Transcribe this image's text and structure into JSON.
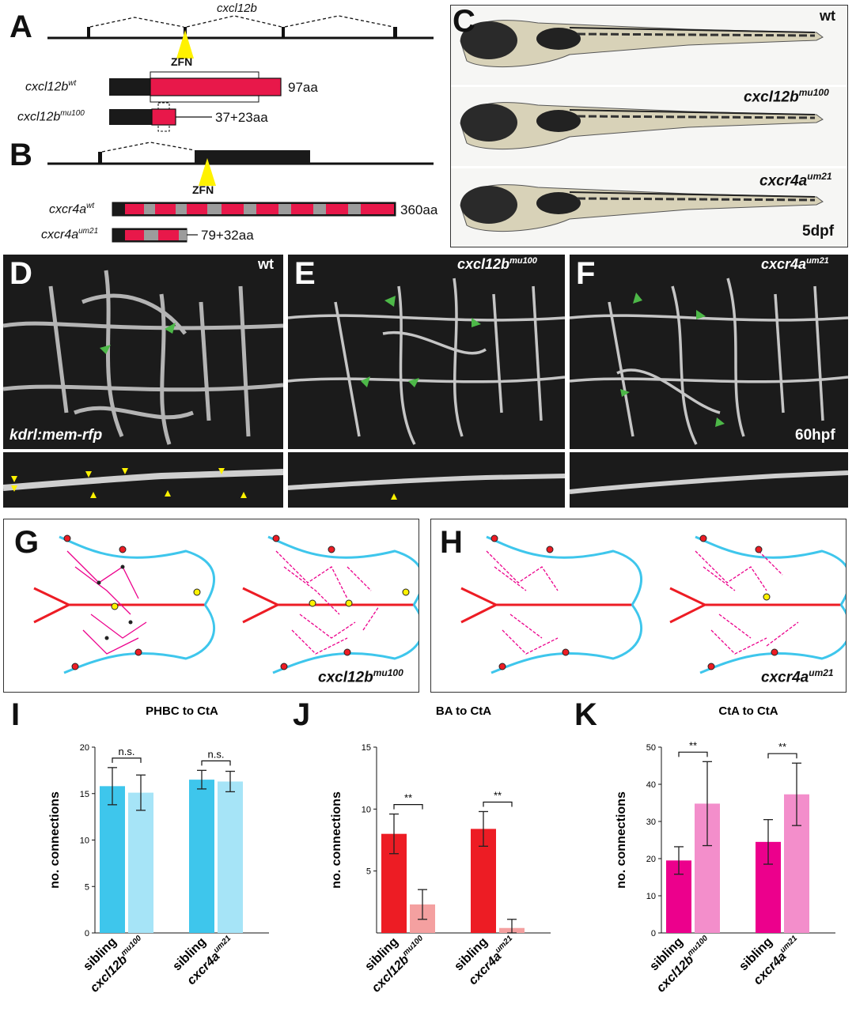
{
  "panels": {
    "A": "A",
    "B": "B",
    "C": "C",
    "D": "D",
    "E": "E",
    "F": "F",
    "G": "G",
    "H": "H",
    "I": "I",
    "J": "J",
    "K": "K"
  },
  "panel_a": {
    "gene": "cxcl12b",
    "zfn": "ZFN",
    "wt_label": "cxcl12b",
    "wt_sup": "wt",
    "wt_len": "97aa",
    "mut_label": "cxcl12b",
    "mut_sup": "mu100",
    "mut_len": "37+23aa"
  },
  "panel_b": {
    "gene": "cxcr4a",
    "zfn": "ZFN",
    "wt_label": "cxcr4a",
    "wt_sup": "wt",
    "wt_len": "360aa",
    "mut_label": "cxcr4a",
    "mut_sup": "um21",
    "mut_len": "79+32aa"
  },
  "panel_c": {
    "wt": "wt",
    "mu_label": "cxcl12b",
    "mu_sup": "mu100",
    "um_label": "cxcr4a",
    "um_sup": "um21",
    "stage": "5dpf"
  },
  "panel_d": {
    "genotype": "wt",
    "marker": "kdrl:mem-rfp"
  },
  "panel_e": {
    "genotype": "cxcl12b",
    "sup": "mu100"
  },
  "panel_f": {
    "genotype": "cxcr4a",
    "sup": "um21",
    "stage": "60hpf"
  },
  "panel_g": {
    "label": "cxcl12b",
    "sup": "mu100"
  },
  "panel_h": {
    "label": "cxcr4a",
    "sup": "um21"
  },
  "colors": {
    "phbc": "#3ec6ec",
    "phbc_mut": "#a6e4f7",
    "ba": "#ed1c24",
    "ba_mut": "#f4a0a0",
    "cta": "#ec008c",
    "cta_mut": "#f38ecb",
    "zfn": "#fff200",
    "domain_red": "#e8184a",
    "domain_gray": "#9c9c9c"
  },
  "chart_data": [
    {
      "type": "bar",
      "panel": "I",
      "title": "PHBC to CtA",
      "ylabel": "no. connections",
      "ylim": [
        0,
        20
      ],
      "yticks": [
        0,
        5,
        10,
        15,
        20
      ],
      "categories": [
        "sibling",
        "cxcl12b",
        "sibling",
        "cxcr4a"
      ],
      "category_sups": [
        "",
        "mu100",
        "",
        "um21"
      ],
      "values": [
        15.8,
        15.1,
        16.5,
        16.3
      ],
      "errors": [
        2.0,
        1.9,
        1.0,
        1.1
      ],
      "significance": [
        "n.s.",
        "n.s."
      ]
    },
    {
      "type": "bar",
      "panel": "J",
      "title": "BA to CtA",
      "ylabel": "no. connections",
      "ylim": [
        0,
        15
      ],
      "yticks": [
        5,
        10,
        15
      ],
      "categories": [
        "sibling",
        "cxcl12b",
        "sibling",
        "cxcr4a"
      ],
      "category_sups": [
        "",
        "mu100",
        "",
        "um21"
      ],
      "values": [
        8.0,
        2.3,
        8.4,
        0.4
      ],
      "errors": [
        1.6,
        1.2,
        1.4,
        0.7
      ],
      "significance": [
        "**",
        "**"
      ]
    },
    {
      "type": "bar",
      "panel": "K",
      "title": "CtA to CtA",
      "ylabel": "no. connections",
      "ylim": [
        0,
        50
      ],
      "yticks": [
        0,
        10,
        20,
        30,
        40,
        50
      ],
      "categories": [
        "sibling",
        "cxcl12b",
        "sibling",
        "cxcr4a"
      ],
      "category_sups": [
        "",
        "mu100",
        "",
        "um21"
      ],
      "values": [
        19.5,
        34.8,
        24.5,
        37.3
      ],
      "errors": [
        3.7,
        11.3,
        6.0,
        8.4
      ],
      "significance": [
        "**",
        "**"
      ]
    }
  ]
}
